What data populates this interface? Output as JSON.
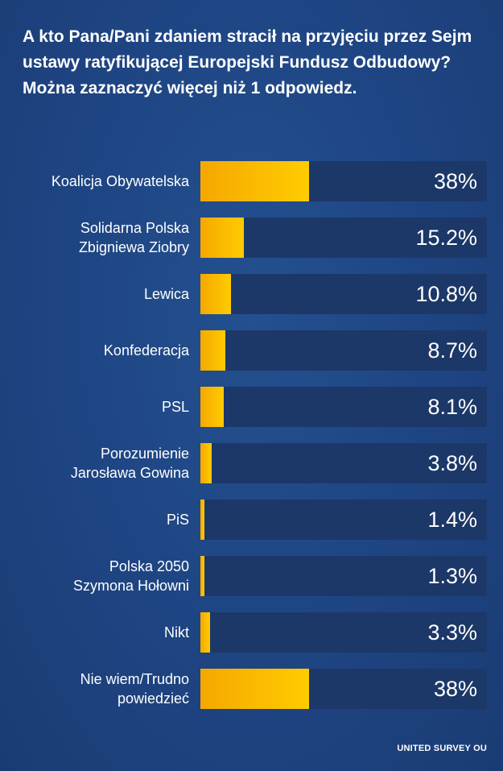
{
  "chart_data": {
    "type": "bar",
    "orientation": "horizontal",
    "title": "A kto Pana/Pani zdaniem stracił na przyjęciu przez Sejm ustawy ratyfikującej Europejski Fundusz Odbudowy? Można zaznaczyć więcej niż 1 odpowiedz.",
    "categories": [
      "Koalicja Obywatelska",
      "Solidarna Polska Zbigniewa Ziobry",
      "Lewica",
      "Konfederacja",
      "PSL",
      "Porozumienie Jarosława Gowina",
      "PiS",
      "Polska 2050 Szymona Hołowni",
      "Nikt",
      "Nie wiem/Trudno powiedzieć"
    ],
    "category_lines": [
      [
        "Koalicja Obywatelska"
      ],
      [
        "Solidarna Polska",
        "Zbigniewa Ziobry"
      ],
      [
        "Lewica"
      ],
      [
        "Konfederacja"
      ],
      [
        "PSL"
      ],
      [
        "Porozumienie",
        "Jarosława Gowina"
      ],
      [
        "PiS"
      ],
      [
        "Polska 2050",
        "Szymona Hołowni"
      ],
      [
        "Nikt"
      ],
      [
        "Nie wiem/Trudno",
        "powiedzieć"
      ]
    ],
    "values": [
      38,
      15.2,
      10.8,
      8.7,
      8.1,
      3.8,
      1.4,
      1.3,
      3.3,
      38
    ],
    "value_labels": [
      "38%",
      "15.2%",
      "10.8%",
      "8.7%",
      "8.1%",
      "3.8%",
      "1.4%",
      "1.3%",
      "3.3%",
      "38%"
    ],
    "xlim": [
      0,
      100
    ],
    "unit": "%",
    "grid": false,
    "legend": "none",
    "bar_color": "#ffcc00",
    "track_color": "#1c3868",
    "background_color": "#1e4482"
  },
  "source": "UNITED SURVEY OU"
}
